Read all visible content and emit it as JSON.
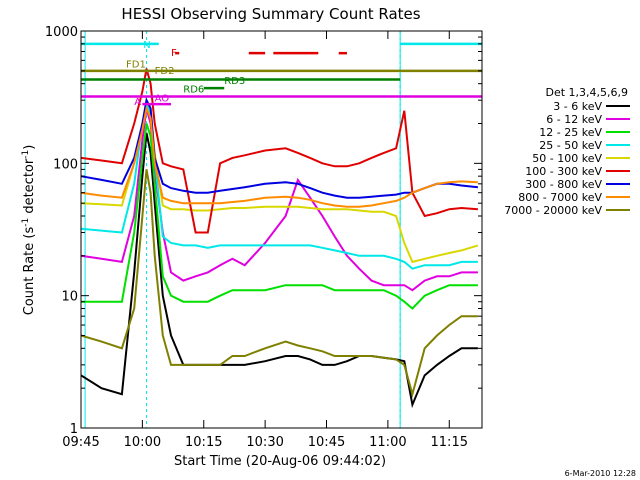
{
  "chart_data": {
    "type": "line",
    "title": "HESSI Observing Summary Count Rates",
    "xlabel": "Start Time (20-Aug-06 09:44:02)",
    "ylabel": "Count Rate (s⁻¹ detector⁻¹)",
    "ylabel_base": "Count Rate (s",
    "ylabel_mid": " detector",
    "ylabel_end": ")",
    "ylabel_sup": "-1",
    "yscale": "log",
    "ylim": [
      1,
      1000
    ],
    "xlim_minutes": [
      585,
      683
    ],
    "x_ticks": [
      {
        "label": "09:45",
        "min": 585
      },
      {
        "label": "10:00",
        "min": 600
      },
      {
        "label": "10:15",
        "min": 615
      },
      {
        "label": "10:30",
        "min": 630
      },
      {
        "label": "10:45",
        "min": 645
      },
      {
        "label": "11:00",
        "min": 660
      },
      {
        "label": "11:15",
        "min": 675
      }
    ],
    "y_ticks": [
      {
        "label": "1",
        "value": 1
      },
      {
        "label": "10",
        "value": 10
      },
      {
        "label": "100",
        "value": 100
      },
      {
        "label": "1000",
        "value": 1000
      }
    ],
    "legend": {
      "placement": "right",
      "header": "Det 1,3,4,5,6,9",
      "entries": [
        {
          "label": "3 - 6 keV",
          "color": "#000000"
        },
        {
          "label": "6 - 12 keV",
          "color": "#e000e0"
        },
        {
          "label": "12 - 25 keV",
          "color": "#00e000"
        },
        {
          "label": "25 - 50 keV",
          "color": "#00e8e8"
        },
        {
          "label": "50 - 100 keV",
          "color": "#d8d800"
        },
        {
          "label": "100 - 300 keV",
          "color": "#e00000"
        },
        {
          "label": "300 - 800 keV",
          "color": "#0000e0"
        },
        {
          "label": "800 - 7000 keV",
          "color": "#ff8c00"
        },
        {
          "label": "7000 - 20000 keV",
          "color": "#7f7f00"
        }
      ]
    },
    "x_minutes": [
      585,
      590,
      595,
      598,
      600,
      601,
      602,
      603,
      605,
      607,
      610,
      613,
      616,
      619,
      622,
      625,
      630,
      635,
      638,
      641,
      644,
      647,
      650,
      653,
      656,
      659,
      662,
      664,
      666,
      669,
      672,
      675,
      678,
      682
    ],
    "series": [
      {
        "name": "3 - 6 keV",
        "color": "#000000",
        "values": [
          2.5,
          2.0,
          1.8,
          15,
          80,
          170,
          120,
          50,
          10,
          5,
          3.0,
          3.0,
          3.0,
          3.0,
          3.0,
          3.0,
          3.2,
          3.5,
          3.5,
          3.3,
          3.0,
          3.0,
          3.2,
          3.5,
          3.5,
          3.4,
          3.3,
          3.2,
          1.5,
          2.5,
          3.0,
          3.5,
          4.0,
          4.0
        ]
      },
      {
        "name": "6 - 12 keV",
        "color": "#e000e0",
        "values": [
          20,
          19,
          18,
          40,
          150,
          260,
          200,
          90,
          30,
          15,
          13,
          14,
          15,
          17,
          19,
          17,
          25,
          40,
          75,
          55,
          40,
          28,
          20,
          16,
          13,
          12,
          12,
          12,
          11,
          13,
          14,
          14,
          15,
          15
        ]
      },
      {
        "name": "12 - 25 keV",
        "color": "#00e000",
        "values": [
          9,
          9,
          9,
          30,
          110,
          200,
          160,
          70,
          14,
          10,
          9,
          9,
          9,
          10,
          11,
          11,
          11,
          12,
          12,
          12,
          12,
          11,
          11,
          11,
          11,
          11,
          10,
          9,
          8,
          10,
          11,
          12,
          12,
          12
        ]
      },
      {
        "name": "25 - 50 keV",
        "color": "#00e8e8",
        "values": [
          32,
          31,
          30,
          70,
          200,
          280,
          240,
          110,
          28,
          25,
          24,
          24,
          23,
          24,
          24,
          24,
          24,
          24,
          24,
          24,
          23,
          22,
          21,
          20,
          20,
          20,
          19,
          18,
          16,
          17,
          17,
          17,
          18,
          18
        ]
      },
      {
        "name": "50 - 100 keV",
        "color": "#d8d800",
        "values": [
          50,
          49,
          48,
          100,
          200,
          300,
          260,
          120,
          48,
          45,
          45,
          44,
          44,
          45,
          46,
          46,
          47,
          47,
          47,
          46,
          45,
          45,
          45,
          44,
          43,
          43,
          40,
          25,
          18,
          19,
          20,
          21,
          22,
          24
        ]
      },
      {
        "name": "100 - 300 keV",
        "color": "#e00000",
        "values": [
          110,
          105,
          100,
          200,
          350,
          520,
          400,
          200,
          100,
          95,
          90,
          30,
          30,
          100,
          110,
          115,
          125,
          130,
          120,
          110,
          100,
          95,
          95,
          100,
          110,
          120,
          130,
          250,
          60,
          40,
          42,
          45,
          46,
          45
        ]
      },
      {
        "name": "300 - 800 keV",
        "color": "#0000e0",
        "values": [
          80,
          75,
          70,
          110,
          200,
          300,
          260,
          110,
          70,
          65,
          62,
          60,
          60,
          62,
          64,
          66,
          70,
          72,
          70,
          65,
          60,
          57,
          55,
          55,
          56,
          57,
          58,
          60,
          60,
          65,
          70,
          70,
          68,
          66
        ]
      },
      {
        "name": "800 - 7000 keV",
        "color": "#ff8c00",
        "values": [
          60,
          57,
          55,
          100,
          180,
          260,
          220,
          100,
          55,
          52,
          50,
          50,
          50,
          50,
          51,
          52,
          55,
          56,
          55,
          53,
          50,
          48,
          47,
          47,
          48,
          50,
          52,
          55,
          60,
          65,
          70,
          72,
          73,
          72
        ]
      },
      {
        "name": "7000 - 20000 keV",
        "color": "#7f7f00",
        "values": [
          5,
          4.5,
          4,
          8,
          40,
          90,
          60,
          20,
          5,
          3,
          3.0,
          3.0,
          3.0,
          3.0,
          3.5,
          3.5,
          4.0,
          4.5,
          4.2,
          4.0,
          3.8,
          3.5,
          3.5,
          3.5,
          3.5,
          3.4,
          3.3,
          3.0,
          1.8,
          4,
          5,
          6,
          7,
          7
        ]
      }
    ],
    "cyan_bars": [
      {
        "label": "N",
        "start": 585,
        "end": 604,
        "level": 800,
        "color": "#00e8e8"
      },
      {
        "label": "",
        "start": 663,
        "end": 683,
        "level": 800,
        "color": "#00e8e8"
      }
    ],
    "annotations": [
      {
        "label": "F",
        "x": 607,
        "y": 680,
        "color": "#e00000"
      },
      {
        "label": "FD1",
        "x": 596,
        "y": 560,
        "color": "#7f7f00"
      },
      {
        "label": "FD2",
        "x": 603,
        "y": 500,
        "color": "#7f7f00"
      },
      {
        "label": "RD3",
        "x": 620,
        "y": 420,
        "color": "#008000"
      },
      {
        "label": "RD6",
        "x": 610,
        "y": 360,
        "color": "#008000"
      },
      {
        "label": "A",
        "x": 598,
        "y": 290,
        "color": "#e000e0"
      },
      {
        "label": "AO",
        "x": 603,
        "y": 310,
        "color": "#e000e0"
      }
    ],
    "flag_lines": [
      {
        "start": 585,
        "end": 683,
        "level": 500,
        "color": "#7f7f00"
      },
      {
        "start": 585,
        "end": 663,
        "level": 430,
        "color": "#008000"
      },
      {
        "start": 585,
        "end": 683,
        "level": 320,
        "color": "#e000e0"
      },
      {
        "start": 615,
        "end": 620,
        "level": 370,
        "color": "#008000"
      },
      {
        "start": 600,
        "end": 607,
        "level": 280,
        "color": "#e000e0"
      },
      {
        "start": 608,
        "end": 609,
        "level": 680,
        "color": "#e00000"
      },
      {
        "start": 626,
        "end": 630,
        "level": 680,
        "color": "#e00000"
      },
      {
        "start": 632,
        "end": 643,
        "level": 680,
        "color": "#e00000"
      },
      {
        "start": 648,
        "end": 650,
        "level": 680,
        "color": "#e00000"
      }
    ],
    "dashed_vlines_minutes": [
      601,
      663,
      683
    ],
    "solid_vlines_minutes": [
      586,
      663
    ],
    "timestamp": "6-Mar-2010 12:28"
  }
}
